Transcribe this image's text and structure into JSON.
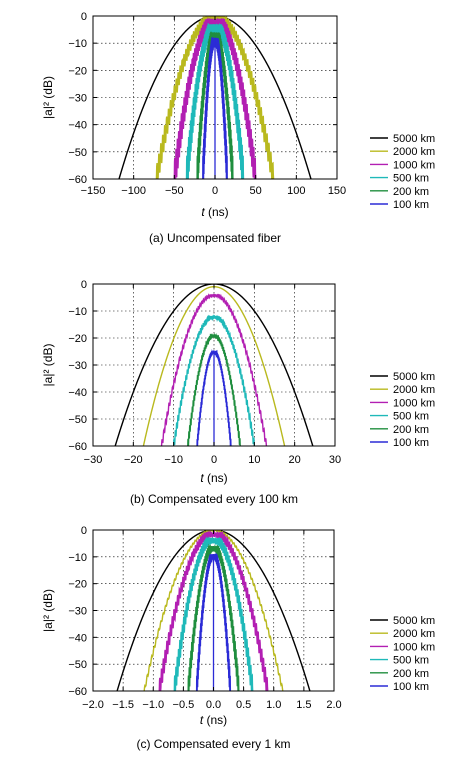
{
  "colors": {
    "5000 km": "#000000",
    "2000 km": "#b9b91e",
    "1000 km": "#b21fb2",
    "500 km": "#1fb9b9",
    "200 km": "#1f8e3e",
    "100 km": "#2b2bd6",
    "extra": "#e01b1b"
  },
  "chart_data": [
    {
      "type": "line",
      "caption": "(a) Uncompensated fiber",
      "xlabel_italic": "t",
      "xlabel_unit": "(ns)",
      "ylabel": "|a|² (dB)",
      "xlim": [
        -150,
        150
      ],
      "ylim": [
        -60,
        0
      ],
      "xticks": [
        -150,
        -100,
        -50,
        0,
        50,
        100,
        150
      ],
      "xtick_labels": [
        "−150",
        "−100",
        "−50",
        "0",
        "50",
        "100",
        "150"
      ],
      "yticks": [
        0,
        -10,
        -20,
        -30,
        -40,
        -50,
        -60
      ],
      "ytick_labels": [
        "0",
        "−10",
        "−20",
        "−30",
        "−40",
        "−50",
        "−60"
      ],
      "grid": true,
      "legend_position": "right",
      "series": [
        {
          "name": "5000 km",
          "color_key": "5000 km",
          "halfwidth": 118,
          "peak": 0,
          "ripple": 0
        },
        {
          "name": "2000 km",
          "color_key": "2000 km",
          "halfwidth": 72,
          "peak": 0,
          "ripple": 5
        },
        {
          "name": "1000 km",
          "color_key": "1000 km",
          "halfwidth": 50,
          "peak": -1,
          "ripple": 7
        },
        {
          "name": "500 km",
          "color_key": "500 km",
          "halfwidth": 35,
          "peak": -3,
          "ripple": 8
        },
        {
          "name": "200 km",
          "color_key": "200 km",
          "halfwidth": 22,
          "peak": -6,
          "ripple": 8
        },
        {
          "name": "100 km",
          "color_key": "100 km",
          "halfwidth": 15,
          "peak": -8,
          "ripple": 8
        }
      ]
    },
    {
      "type": "line",
      "caption": "(b) Compensated every 100 km",
      "xlabel_italic": "t",
      "xlabel_unit": "(ns)",
      "ylabel": "|a|² (dB)",
      "xlim": [
        -30,
        30
      ],
      "ylim": [
        -60,
        0
      ],
      "xticks": [
        -30,
        -20,
        -10,
        0,
        10,
        20,
        30
      ],
      "xtick_labels": [
        "−30",
        "−20",
        "−10",
        "0",
        "10",
        "20",
        "30"
      ],
      "yticks": [
        0,
        -10,
        -20,
        -30,
        -40,
        -50,
        -60
      ],
      "ytick_labels": [
        "0",
        "−10",
        "−20",
        "−30",
        "−40",
        "−50",
        "−60"
      ],
      "grid": true,
      "legend_position": "right",
      "series": [
        {
          "name": "5000 km",
          "color_key": "5000 km",
          "halfwidth": 24.5,
          "peak": 0,
          "ripple": 0
        },
        {
          "name": "2000 km",
          "color_key": "2000 km",
          "halfwidth": 17.5,
          "peak": -1,
          "ripple": 0
        },
        {
          "name": "1000 km",
          "color_key": "1000 km",
          "halfwidth": 13,
          "peak": -4,
          "ripple": 1.5
        },
        {
          "name": "500 km",
          "color_key": "500 km",
          "halfwidth": 10,
          "peak": -12,
          "ripple": 2
        },
        {
          "name": "200 km",
          "color_key": "200 km",
          "halfwidth": 6.5,
          "peak": -19,
          "ripple": 2
        },
        {
          "name": "100 km",
          "color_key": "100 km",
          "halfwidth": 4.2,
          "peak": -25,
          "ripple": 2
        }
      ]
    },
    {
      "type": "line",
      "caption": "(c) Compensated every  1 km",
      "xlabel_italic": "t",
      "xlabel_unit": "(ns)",
      "ylabel": "|a|² (dB)",
      "xlim": [
        -2.0,
        2.0
      ],
      "ylim": [
        -60,
        0
      ],
      "xticks": [
        -2.0,
        -1.5,
        -1.0,
        -0.5,
        0,
        0.5,
        1.0,
        1.5,
        2.0
      ],
      "xtick_labels": [
        "−2.0",
        "−1.5",
        "−1.0",
        "−0.5",
        "0.0",
        "0.5",
        "1.0",
        "1.5",
        "2.0"
      ],
      "yticks": [
        0,
        -10,
        -20,
        -30,
        -40,
        -50,
        -60
      ],
      "ytick_labels": [
        "0",
        "−10",
        "−20",
        "−30",
        "−40",
        "−50",
        "−60"
      ],
      "grid": true,
      "legend_position": "right",
      "series": [
        {
          "name": "5000 km",
          "color_key": "5000 km",
          "halfwidth": 1.6,
          "peak": 0,
          "ripple": 0
        },
        {
          "name": "2000 km",
          "color_key": "2000 km",
          "halfwidth": 1.15,
          "peak": 0,
          "ripple": 1
        },
        {
          "name": "1000 km",
          "color_key": "1000 km",
          "halfwidth": 0.9,
          "peak": -1,
          "ripple": 4
        },
        {
          "name": "500 km",
          "color_key": "500 km",
          "halfwidth": 0.65,
          "peak": -3,
          "ripple": 5
        },
        {
          "name": "200 km",
          "color_key": "200 km",
          "halfwidth": 0.42,
          "peak": -6,
          "ripple": 5
        },
        {
          "name": "100 km",
          "color_key": "100 km",
          "halfwidth": 0.28,
          "peak": -9,
          "ripple": 5
        }
      ]
    }
  ]
}
